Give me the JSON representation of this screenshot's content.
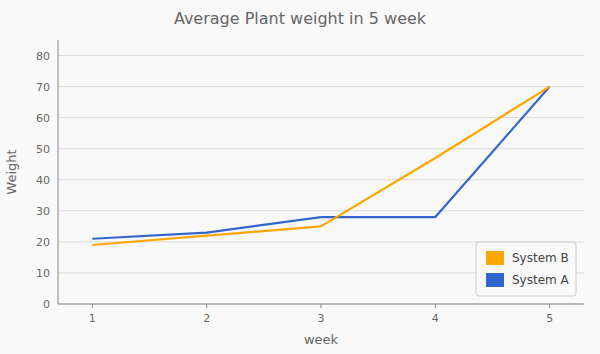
{
  "chart_data": {
    "type": "line",
    "title": "Average Plant weight in 5 week",
    "xlabel": "week",
    "ylabel": "Weight",
    "x": [
      1,
      2,
      3,
      4,
      5
    ],
    "series": [
      {
        "name": "System B",
        "color": "#FFA500",
        "values": [
          19,
          22,
          25,
          47,
          70
        ]
      },
      {
        "name": "System A",
        "color": "#3366CC",
        "values": [
          21,
          23,
          28,
          28,
          70
        ]
      }
    ],
    "xlim": [
      0.7,
      5.3
    ],
    "xticks": [
      1,
      2,
      3,
      4,
      5
    ],
    "ylim": [
      0,
      85
    ],
    "yticks": [
      0,
      10,
      20,
      30,
      40,
      50,
      60,
      70,
      80
    ],
    "grid": true,
    "legend": "lower right"
  }
}
